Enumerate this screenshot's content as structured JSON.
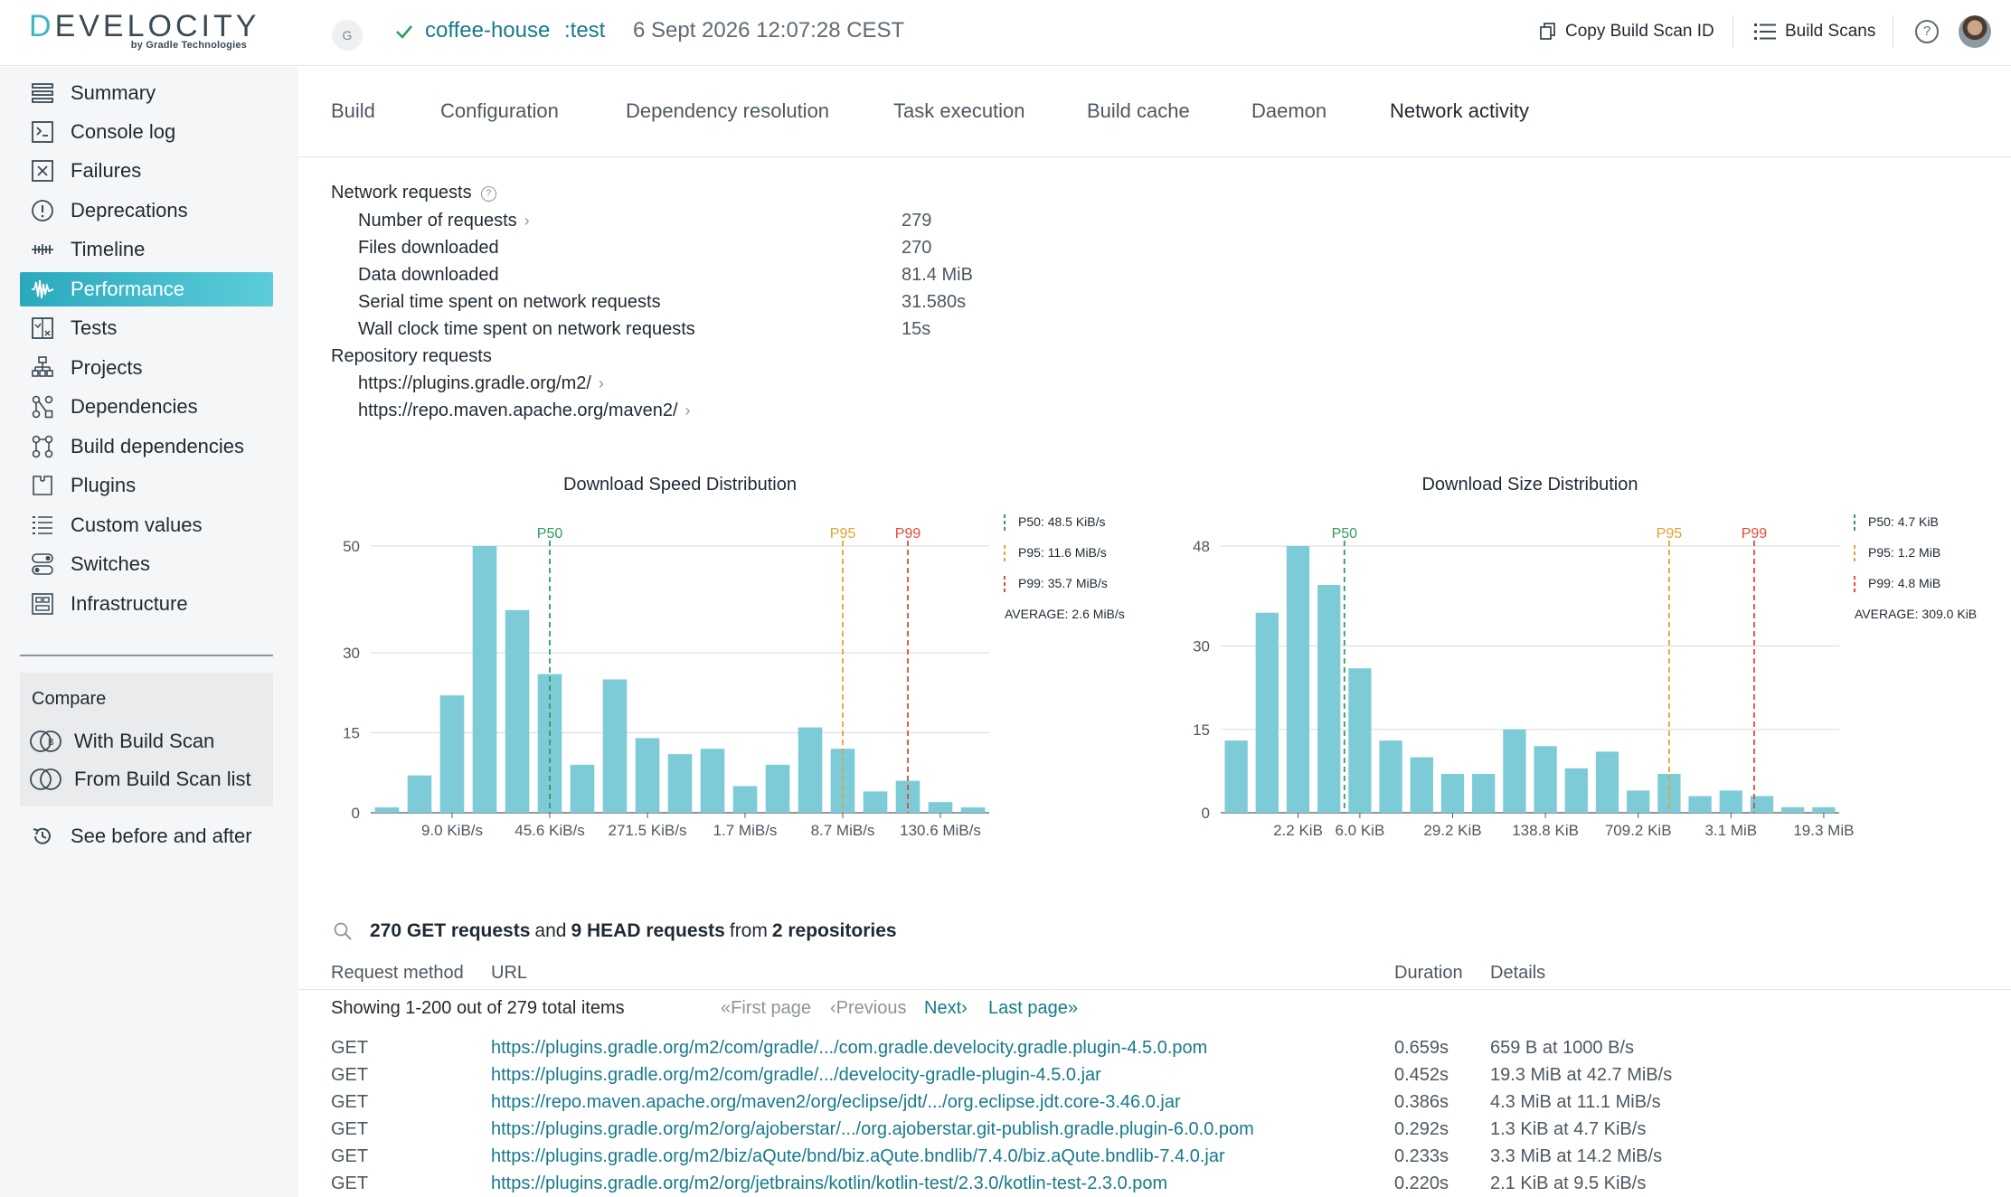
{
  "header": {
    "logo_main": "DEVELOCITY",
    "logo_sub": "by Gradle Technologies",
    "badge": "G",
    "project": "coffee-house",
    "task": ":test",
    "date": "6 Sept 2026 12:07:28 CEST",
    "copy_label": "Copy Build Scan ID",
    "scans_label": "Build Scans",
    "help": "?"
  },
  "sidebar": {
    "items": [
      {
        "label": "Summary",
        "icon": "summary-icon"
      },
      {
        "label": "Console log",
        "icon": "console-icon"
      },
      {
        "label": "Failures",
        "icon": "failures-icon"
      },
      {
        "label": "Deprecations",
        "icon": "deprecations-icon"
      },
      {
        "label": "Timeline",
        "icon": "timeline-icon"
      },
      {
        "label": "Performance",
        "icon": "performance-icon",
        "active": true
      },
      {
        "label": "Tests",
        "icon": "tests-icon"
      },
      {
        "label": "Projects",
        "icon": "projects-icon"
      },
      {
        "label": "Dependencies",
        "icon": "dependencies-icon"
      },
      {
        "label": "Build dependencies",
        "icon": "build-dependencies-icon"
      },
      {
        "label": "Plugins",
        "icon": "plugins-icon"
      },
      {
        "label": "Custom values",
        "icon": "custom-values-icon"
      },
      {
        "label": "Switches",
        "icon": "switches-icon"
      },
      {
        "label": "Infrastructure",
        "icon": "infrastructure-icon"
      }
    ],
    "compare_title": "Compare",
    "compare_with": "With Build Scan",
    "compare_from": "From Build Scan list",
    "before_after": "See before and after"
  },
  "tabs": [
    {
      "label": "Build"
    },
    {
      "label": "Configuration"
    },
    {
      "label": "Dependency resolution"
    },
    {
      "label": "Task execution"
    },
    {
      "label": "Build cache"
    },
    {
      "label": "Daemon"
    },
    {
      "label": "Network activity",
      "active": true
    }
  ],
  "network": {
    "title": "Network requests",
    "rows": [
      {
        "label": "Number of requests",
        "value": "279"
      },
      {
        "label": "Files downloaded",
        "value": "270"
      },
      {
        "label": "Data downloaded",
        "value": "81.4 MiB"
      },
      {
        "label": "Serial time spent on network requests",
        "value": "31.580s"
      },
      {
        "label": "Wall clock time spent on network requests",
        "value": "15s"
      }
    ],
    "repo_title": "Repository requests",
    "repos": [
      "https://plugins.gradle.org/m2/",
      "https://repo.maven.apache.org/maven2/"
    ]
  },
  "colors": {
    "bar": "#7ecbd8",
    "p50": "#2e9e5b",
    "p95": "#e0a431",
    "p99": "#e5483b",
    "accent": "#177a8a"
  },
  "chart_data": [
    {
      "type": "bar",
      "title": "Download Speed Distribution",
      "yticks": [
        0,
        15,
        30,
        50
      ],
      "ylim": [
        0,
        50
      ],
      "values": [
        1,
        7,
        22,
        50,
        38,
        26,
        9,
        25,
        14,
        11,
        12,
        5,
        9,
        16,
        12,
        4,
        6,
        2,
        1
      ],
      "xtick_labels": [
        {
          "bar": 2.5,
          "label": "9.0 KiB/s"
        },
        {
          "bar": 5.5,
          "label": "45.6 KiB/s"
        },
        {
          "bar": 8.5,
          "label": "271.5 KiB/s"
        },
        {
          "bar": 11.5,
          "label": "1.7 MiB/s"
        },
        {
          "bar": 14.5,
          "label": "8.7 MiB/s"
        },
        {
          "bar": 17.5,
          "label": "130.6 MiB/s"
        }
      ],
      "markers": [
        {
          "name": "P50",
          "bar": 5.5,
          "color": "#2e9e5b"
        },
        {
          "name": "P95",
          "bar": 14.5,
          "color": "#e0a431"
        },
        {
          "name": "P99",
          "bar": 16.5,
          "color": "#e5483b"
        }
      ],
      "legend": [
        "P50: 48.5 KiB/s",
        "P95: 11.6 MiB/s",
        "P99: 35.7 MiB/s",
        "AVERAGE: 2.6 MiB/s"
      ]
    },
    {
      "type": "bar",
      "title": "Download Size Distribution",
      "yticks": [
        0,
        15,
        30,
        48
      ],
      "ylim": [
        0,
        48
      ],
      "values": [
        13,
        36,
        48,
        41,
        26,
        13,
        10,
        7,
        7,
        15,
        12,
        8,
        11,
        4,
        7,
        3,
        4,
        3,
        1,
        1
      ],
      "xtick_labels": [
        {
          "bar": 2.5,
          "label": "2.2 KiB"
        },
        {
          "bar": 4.5,
          "label": "6.0 KiB"
        },
        {
          "bar": 7.5,
          "label": "29.2 KiB"
        },
        {
          "bar": 10.5,
          "label": "138.8 KiB"
        },
        {
          "bar": 13.5,
          "label": "709.2 KiB"
        },
        {
          "bar": 16.5,
          "label": "3.1 MiB"
        },
        {
          "bar": 19.5,
          "label": "19.3 MiB"
        }
      ],
      "markers": [
        {
          "name": "P50",
          "bar": 4.0,
          "color": "#2e9e5b"
        },
        {
          "name": "P95",
          "bar": 14.5,
          "color": "#e0a431"
        },
        {
          "name": "P99",
          "bar": 17.25,
          "color": "#e5483b"
        }
      ],
      "legend": [
        "P50: 4.7 KiB",
        "P95: 1.2 MiB",
        "P99: 4.8 MiB",
        "AVERAGE: 309.0 KiB"
      ]
    }
  ],
  "requests": {
    "summary_pre": "270 GET requests",
    "summary_and": "and",
    "summary_mid": "9 HEAD requests",
    "summary_from": "from",
    "summary_post": "2 repositories",
    "columns": {
      "method": "Request method",
      "url": "URL",
      "duration": "Duration",
      "details": "Details"
    },
    "showing": "Showing 1-200 out of 279 total items",
    "pager": {
      "first": "«First page",
      "previous": "‹Previous",
      "next": "Next›",
      "last": "Last page»"
    },
    "rows": [
      {
        "method": "GET",
        "url": "https://plugins.gradle.org/m2/com/gradle/.../com.gradle.develocity.gradle.plugin-4.5.0.pom",
        "duration": "0.659s",
        "details": "659 B at 1000 B/s"
      },
      {
        "method": "GET",
        "url": "https://plugins.gradle.org/m2/com/gradle/.../develocity-gradle-plugin-4.5.0.jar",
        "duration": "0.452s",
        "details": "19.3 MiB at 42.7 MiB/s"
      },
      {
        "method": "GET",
        "url": "https://repo.maven.apache.org/maven2/org/eclipse/jdt/.../org.eclipse.jdt.core-3.46.0.jar",
        "duration": "0.386s",
        "details": "4.3 MiB at 11.1 MiB/s"
      },
      {
        "method": "GET",
        "url": "https://plugins.gradle.org/m2/org/ajoberstar/.../org.ajoberstar.git-publish.gradle.plugin-6.0.0.pom",
        "duration": "0.292s",
        "details": "1.3 KiB at 4.7 KiB/s"
      },
      {
        "method": "GET",
        "url": "https://plugins.gradle.org/m2/biz/aQute/bnd/biz.aQute.bndlib/7.4.0/biz.aQute.bndlib-7.4.0.jar",
        "duration": "0.233s",
        "details": "3.3 MiB at 14.2 MiB/s"
      },
      {
        "method": "GET",
        "url": "https://plugins.gradle.org/m2/org/jetbrains/kotlin/kotlin-test/2.3.0/kotlin-test-2.3.0.pom",
        "duration": "0.220s",
        "details": "2.1 KiB at 9.5 KiB/s"
      }
    ]
  }
}
